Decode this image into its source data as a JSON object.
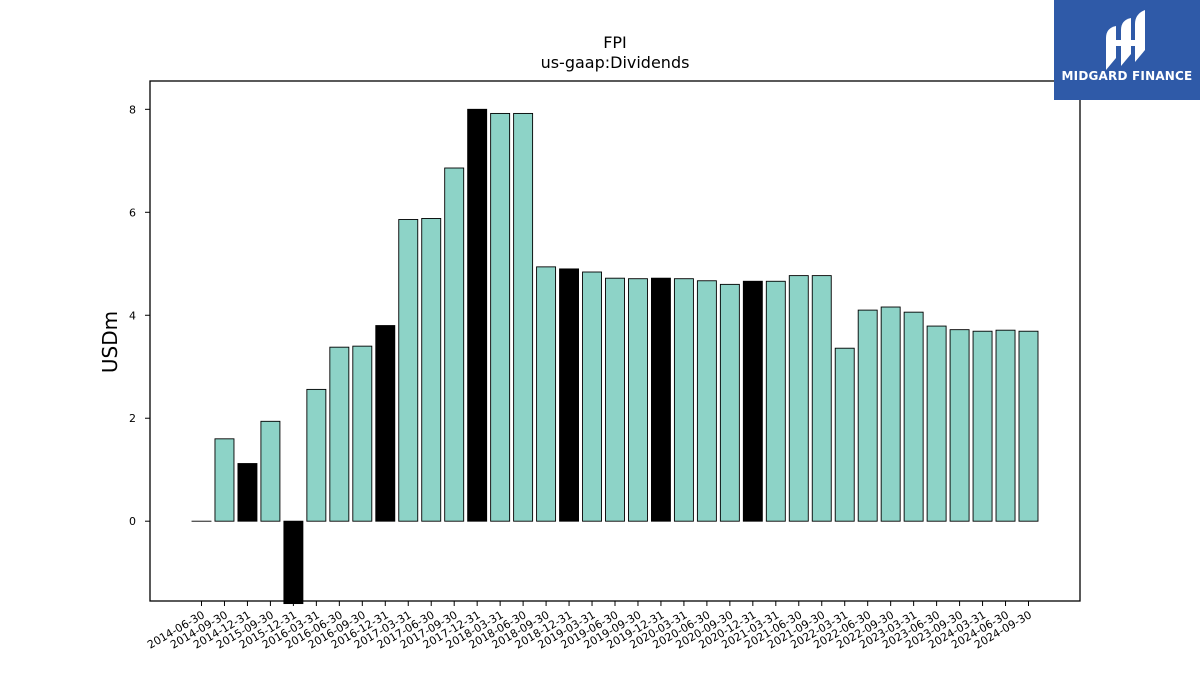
{
  "brand": {
    "name": "MIDGARD FINANCE",
    "logo_icon": "mh-monogram-icon",
    "bg_color": "#2f5aa8"
  },
  "chart_data": {
    "type": "bar",
    "title": "FPI",
    "subtitle": "us-gaap:Dividends",
    "ylabel": "USDm",
    "xlabel": "",
    "ylim": [
      -1.55,
      8.55
    ],
    "yticks": [
      0,
      2,
      4,
      6,
      8
    ],
    "grid": false,
    "legend": "none",
    "colors": {
      "quarterly": "#8dd3c7",
      "annual": "#000000",
      "edge": "#000000"
    },
    "categories": [
      "2014-06-30",
      "2014-09-30",
      "2014-12-31",
      "2015-09-30",
      "2015-12-31",
      "2016-03-31",
      "2016-06-30",
      "2016-09-30",
      "2016-12-31",
      "2017-03-31",
      "2017-06-30",
      "2017-09-30",
      "2017-12-31",
      "2018-03-31",
      "2018-06-30",
      "2018-09-30",
      "2018-12-31",
      "2019-03-31",
      "2019-06-30",
      "2019-09-30",
      "2019-12-31",
      "2020-03-31",
      "2020-06-30",
      "2020-09-30",
      "2020-12-31",
      "2021-03-31",
      "2021-06-30",
      "2021-09-30",
      "2022-03-31",
      "2022-06-30",
      "2022-09-30",
      "2023-03-31",
      "2023-06-30",
      "2023-09-30",
      "2024-03-31",
      "2024-06-30",
      "2024-09-30"
    ],
    "values": [
      0.0,
      1.6,
      1.12,
      1.94,
      -1.6,
      2.56,
      3.38,
      3.4,
      3.8,
      5.86,
      5.88,
      6.86,
      8.0,
      7.92,
      7.92,
      4.94,
      4.9,
      4.84,
      4.72,
      4.71,
      4.72,
      4.71,
      4.67,
      4.6,
      4.66,
      4.66,
      4.77,
      4.77,
      3.36,
      4.1,
      4.16,
      4.06,
      3.79,
      3.72,
      3.69,
      3.71,
      3.69
    ],
    "period_type": [
      "annual",
      "quarterly",
      "annual",
      "quarterly",
      "annual",
      "quarterly",
      "quarterly",
      "quarterly",
      "annual",
      "quarterly",
      "quarterly",
      "quarterly",
      "annual",
      "quarterly",
      "quarterly",
      "quarterly",
      "annual",
      "quarterly",
      "quarterly",
      "quarterly",
      "annual",
      "quarterly",
      "quarterly",
      "quarterly",
      "annual",
      "quarterly",
      "quarterly",
      "quarterly",
      "quarterly",
      "quarterly",
      "quarterly",
      "quarterly",
      "quarterly",
      "quarterly",
      "quarterly",
      "quarterly",
      "quarterly"
    ]
  }
}
